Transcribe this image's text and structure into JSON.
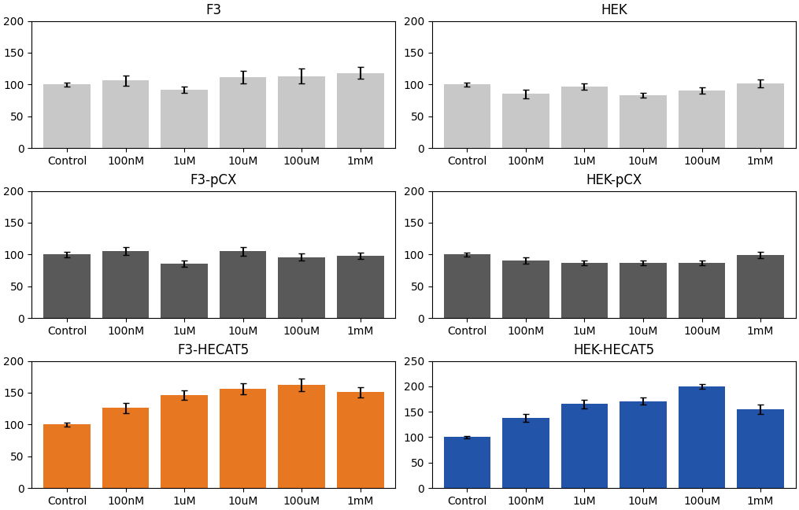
{
  "chart_data": [
    {
      "type": "bar",
      "title": "F3",
      "categories": [
        "Control",
        "100nM",
        "1uM",
        "10uM",
        "100uM",
        "1mM"
      ],
      "values": [
        100,
        106,
        92,
        111,
        113,
        118
      ],
      "errors": [
        3,
        8,
        5,
        10,
        12,
        9
      ],
      "color": "#c8c8c8",
      "ylim": [
        0,
        200
      ],
      "yticks": [
        0,
        50,
        100,
        150,
        200
      ]
    },
    {
      "type": "bar",
      "title": "HEK",
      "categories": [
        "Control",
        "100nM",
        "1uM",
        "10uM",
        "100uM",
        "1mM"
      ],
      "values": [
        100,
        85,
        97,
        83,
        91,
        102
      ],
      "errors": [
        3,
        7,
        5,
        4,
        5,
        6
      ],
      "color": "#c8c8c8",
      "ylim": [
        0,
        200
      ],
      "yticks": [
        0,
        50,
        100,
        150,
        200
      ]
    },
    {
      "type": "bar",
      "title": "F3-pCX",
      "categories": [
        "Control",
        "100nM",
        "1uM",
        "10uM",
        "100uM",
        "1mM"
      ],
      "values": [
        100,
        105,
        85,
        105,
        96,
        98
      ],
      "errors": [
        4,
        6,
        5,
        7,
        5,
        5
      ],
      "color": "#595959",
      "ylim": [
        0,
        200
      ],
      "yticks": [
        0,
        50,
        100,
        150,
        200
      ]
    },
    {
      "type": "bar",
      "title": "HEK-pCX",
      "categories": [
        "Control",
        "100nM",
        "1uM",
        "10uM",
        "100uM",
        "1mM"
      ],
      "values": [
        100,
        90,
        87,
        87,
        87,
        99
      ],
      "errors": [
        3,
        5,
        4,
        4,
        4,
        5
      ],
      "color": "#595959",
      "ylim": [
        0,
        200
      ],
      "yticks": [
        0,
        50,
        100,
        150,
        200
      ]
    },
    {
      "type": "bar",
      "title": "F3-HECAT5",
      "categories": [
        "Control",
        "100nM",
        "1uM",
        "10uM",
        "100uM",
        "1mM"
      ],
      "values": [
        100,
        126,
        146,
        156,
        162,
        151
      ],
      "errors": [
        3,
        8,
        7,
        9,
        10,
        8
      ],
      "color": "#e87722",
      "ylim": [
        0,
        200
      ],
      "yticks": [
        0,
        50,
        100,
        150,
        200
      ]
    },
    {
      "type": "bar",
      "title": "HEK-HECAT5",
      "categories": [
        "Control",
        "100nM",
        "1uM",
        "10uM",
        "100uM",
        "1mM"
      ],
      "values": [
        100,
        138,
        165,
        171,
        200,
        155
      ],
      "errors": [
        2,
        8,
        8,
        7,
        5,
        9
      ],
      "color": "#2255aa",
      "ylim": [
        0,
        250
      ],
      "yticks": [
        0,
        50,
        100,
        150,
        200,
        250
      ]
    }
  ]
}
